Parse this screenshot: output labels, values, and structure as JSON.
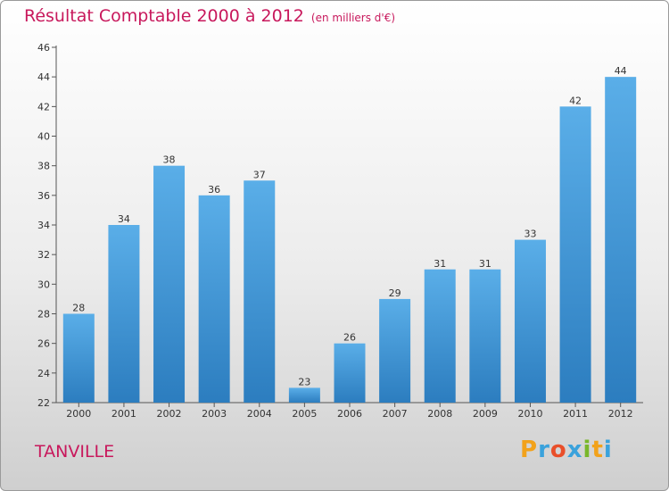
{
  "header": {
    "title": "Résultat Comptable 2000 à 2012",
    "unit": "(en milliers d'€)"
  },
  "footer": {
    "city": "TANVILLE",
    "logo_letters": [
      "P",
      "r",
      "o",
      "x",
      "i",
      "t",
      "i"
    ],
    "logo_colors": [
      "#f2a21b",
      "#3aa2dc",
      "#e94f2a",
      "#3aa2dc",
      "#79b72b",
      "#f2a21b",
      "#3aa2dc"
    ]
  },
  "colors": {
    "title": "#c8185c",
    "bar_light": "#5aaee8",
    "bar_dark": "#2c7dbf",
    "axis": "#555555"
  },
  "chart_data": {
    "type": "bar",
    "title": "Résultat Comptable 2000 à 2012",
    "subtitle": "(en milliers d'€)",
    "categories": [
      "2000",
      "2001",
      "2002",
      "2003",
      "2004",
      "2005",
      "2006",
      "2007",
      "2008",
      "2009",
      "2010",
      "2011",
      "2012"
    ],
    "values": [
      28,
      34,
      38,
      36,
      37,
      23,
      26,
      29,
      31,
      31,
      33,
      42,
      44
    ],
    "ylim": [
      22,
      46
    ],
    "yticks": [
      22,
      24,
      26,
      28,
      30,
      32,
      34,
      36,
      38,
      40,
      42,
      44,
      46
    ],
    "xlabel": "",
    "ylabel": "",
    "data_labels": true,
    "grid": false
  }
}
